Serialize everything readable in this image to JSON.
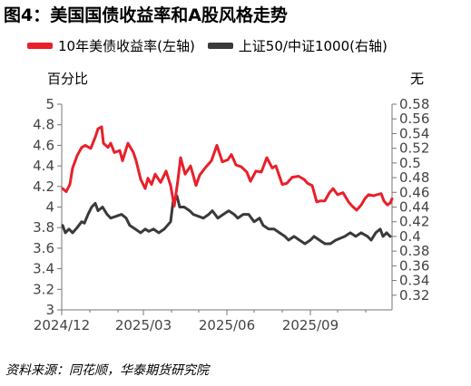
{
  "title": "图4：美国国债收益率和A股风格走势",
  "legend": {
    "series1": "10年美债收益率(左轴)",
    "series2": "上证50/中证1000(右轴)"
  },
  "units": {
    "left": "百分比",
    "right": "无"
  },
  "source": "资料来源：同花顺，华泰期货研究院",
  "colors": {
    "series1": "#e8202a",
    "series2": "#3a3a3a"
  },
  "chart_data": {
    "type": "line",
    "title": "图4：美国国债收益率和A股风格走势",
    "x_ticks": [
      "2024/12",
      "2025/03",
      "2025/06",
      "2025/09"
    ],
    "x_range": [
      "2024-12-01",
      "2025-11-30"
    ],
    "left_axis": {
      "label": "百分比",
      "ylim": [
        3,
        5
      ],
      "ticks": [
        "3",
        "3.2",
        "3.4",
        "3.6",
        "3.8",
        "4",
        "4.2",
        "4.4",
        "4.6",
        "4.8",
        "5"
      ]
    },
    "right_axis": {
      "label": "无",
      "ylim": [
        0.3,
        0.58
      ],
      "ticks": [
        "0.32",
        "0.34",
        "0.36",
        "0.38",
        "0.4",
        "0.42",
        "0.44",
        "0.46",
        "0.48",
        "0.5",
        "0.52",
        "0.54",
        "0.56",
        "0.58"
      ]
    },
    "series": [
      {
        "name": "10年美债收益率(左轴)",
        "axis": "left",
        "points": [
          [
            "2024-12-02",
            4.18
          ],
          [
            "2024-12-06",
            4.15
          ],
          [
            "2024-12-10",
            4.22
          ],
          [
            "2024-12-13",
            4.38
          ],
          [
            "2024-12-18",
            4.5
          ],
          [
            "2024-12-23",
            4.58
          ],
          [
            "2024-12-27",
            4.6
          ],
          [
            "2025-01-02",
            4.57
          ],
          [
            "2025-01-07",
            4.68
          ],
          [
            "2025-01-10",
            4.76
          ],
          [
            "2025-01-14",
            4.78
          ],
          [
            "2025-01-16",
            4.62
          ],
          [
            "2025-01-21",
            4.58
          ],
          [
            "2025-01-24",
            4.62
          ],
          [
            "2025-01-28",
            4.53
          ],
          [
            "2025-02-03",
            4.55
          ],
          [
            "2025-02-06",
            4.45
          ],
          [
            "2025-02-12",
            4.62
          ],
          [
            "2025-02-18",
            4.53
          ],
          [
            "2025-02-21",
            4.45
          ],
          [
            "2025-02-26",
            4.27
          ],
          [
            "2025-03-03",
            4.18
          ],
          [
            "2025-03-06",
            4.28
          ],
          [
            "2025-03-10",
            4.22
          ],
          [
            "2025-03-14",
            4.32
          ],
          [
            "2025-03-20",
            4.24
          ],
          [
            "2025-03-26",
            4.35
          ],
          [
            "2025-03-31",
            4.21
          ],
          [
            "2025-04-04",
            4.01
          ],
          [
            "2025-04-08",
            4.26
          ],
          [
            "2025-04-11",
            4.48
          ],
          [
            "2025-04-16",
            4.32
          ],
          [
            "2025-04-22",
            4.4
          ],
          [
            "2025-04-28",
            4.21
          ],
          [
            "2025-05-02",
            4.31
          ],
          [
            "2025-05-08",
            4.38
          ],
          [
            "2025-05-15",
            4.45
          ],
          [
            "2025-05-21",
            4.6
          ],
          [
            "2025-05-27",
            4.44
          ],
          [
            "2025-06-02",
            4.46
          ],
          [
            "2025-06-06",
            4.51
          ],
          [
            "2025-06-11",
            4.41
          ],
          [
            "2025-06-17",
            4.39
          ],
          [
            "2025-06-23",
            4.34
          ],
          [
            "2025-06-27",
            4.25
          ],
          [
            "2025-07-03",
            4.35
          ],
          [
            "2025-07-09",
            4.34
          ],
          [
            "2025-07-15",
            4.48
          ],
          [
            "2025-07-21",
            4.38
          ],
          [
            "2025-07-25",
            4.4
          ],
          [
            "2025-08-01",
            4.22
          ],
          [
            "2025-08-06",
            4.23
          ],
          [
            "2025-08-12",
            4.29
          ],
          [
            "2025-08-19",
            4.3
          ],
          [
            "2025-08-25",
            4.27
          ],
          [
            "2025-08-29",
            4.23
          ],
          [
            "2025-09-03",
            4.21
          ],
          [
            "2025-09-08",
            4.05
          ],
          [
            "2025-09-12",
            4.06
          ],
          [
            "2025-09-17",
            4.06
          ],
          [
            "2025-09-22",
            4.14
          ],
          [
            "2025-09-26",
            4.18
          ],
          [
            "2025-10-01",
            4.12
          ],
          [
            "2025-10-07",
            4.14
          ],
          [
            "2025-10-13",
            4.05
          ],
          [
            "2025-10-17",
            4.01
          ],
          [
            "2025-10-22",
            3.97
          ],
          [
            "2025-10-27",
            4.02
          ],
          [
            "2025-10-31",
            4.08
          ],
          [
            "2025-11-04",
            4.12
          ],
          [
            "2025-11-10",
            4.11
          ],
          [
            "2025-11-13",
            4.12
          ],
          [
            "2025-11-18",
            4.13
          ],
          [
            "2025-11-21",
            4.06
          ],
          [
            "2025-11-25",
            4.02
          ],
          [
            "2025-11-28",
            4.04
          ],
          [
            "2025-11-30",
            4.08
          ]
        ]
      },
      {
        "name": "上证50/中证1000(右轴)",
        "axis": "right",
        "points": [
          [
            "2024-12-02",
            0.415
          ],
          [
            "2024-12-05",
            0.405
          ],
          [
            "2024-12-09",
            0.41
          ],
          [
            "2024-12-13",
            0.405
          ],
          [
            "2024-12-18",
            0.412
          ],
          [
            "2024-12-23",
            0.42
          ],
          [
            "2024-12-26",
            0.418
          ],
          [
            "2024-12-30",
            0.43
          ],
          [
            "2025-01-03",
            0.44
          ],
          [
            "2025-01-07",
            0.445
          ],
          [
            "2025-01-10",
            0.435
          ],
          [
            "2025-01-15",
            0.44
          ],
          [
            "2025-01-20",
            0.43
          ],
          [
            "2025-01-24",
            0.425
          ],
          [
            "2025-02-05",
            0.43
          ],
          [
            "2025-02-10",
            0.425
          ],
          [
            "2025-02-14",
            0.415
          ],
          [
            "2025-02-20",
            0.41
          ],
          [
            "2025-02-26",
            0.405
          ],
          [
            "2025-03-03",
            0.41
          ],
          [
            "2025-03-07",
            0.407
          ],
          [
            "2025-03-12",
            0.41
          ],
          [
            "2025-03-18",
            0.405
          ],
          [
            "2025-03-24",
            0.41
          ],
          [
            "2025-03-31",
            0.42
          ],
          [
            "2025-04-03",
            0.45
          ],
          [
            "2025-04-07",
            0.455
          ],
          [
            "2025-04-10",
            0.44
          ],
          [
            "2025-04-15",
            0.44
          ],
          [
            "2025-04-21",
            0.435
          ],
          [
            "2025-04-25",
            0.43
          ],
          [
            "2025-05-06",
            0.425
          ],
          [
            "2025-05-12",
            0.43
          ],
          [
            "2025-05-16",
            0.435
          ],
          [
            "2025-05-22",
            0.425
          ],
          [
            "2025-05-28",
            0.43
          ],
          [
            "2025-06-03",
            0.435
          ],
          [
            "2025-06-09",
            0.43
          ],
          [
            "2025-06-13",
            0.425
          ],
          [
            "2025-06-19",
            0.43
          ],
          [
            "2025-06-25",
            0.43
          ],
          [
            "2025-07-01",
            0.42
          ],
          [
            "2025-07-07",
            0.425
          ],
          [
            "2025-07-11",
            0.415
          ],
          [
            "2025-07-17",
            0.41
          ],
          [
            "2025-07-23",
            0.41
          ],
          [
            "2025-07-29",
            0.405
          ],
          [
            "2025-08-04",
            0.4
          ],
          [
            "2025-08-08",
            0.395
          ],
          [
            "2025-08-14",
            0.4
          ],
          [
            "2025-08-20",
            0.395
          ],
          [
            "2025-08-26",
            0.39
          ],
          [
            "2025-09-01",
            0.395
          ],
          [
            "2025-09-05",
            0.4
          ],
          [
            "2025-09-11",
            0.395
          ],
          [
            "2025-09-17",
            0.39
          ],
          [
            "2025-09-23",
            0.39
          ],
          [
            "2025-09-29",
            0.395
          ],
          [
            "2025-10-09",
            0.4
          ],
          [
            "2025-10-15",
            0.405
          ],
          [
            "2025-10-21",
            0.4
          ],
          [
            "2025-10-27",
            0.405
          ],
          [
            "2025-11-03",
            0.4
          ],
          [
            "2025-11-07",
            0.395
          ],
          [
            "2025-11-12",
            0.405
          ],
          [
            "2025-11-17",
            0.41
          ],
          [
            "2025-11-20",
            0.4
          ],
          [
            "2025-11-24",
            0.405
          ],
          [
            "2025-11-28",
            0.4
          ]
        ]
      }
    ]
  }
}
